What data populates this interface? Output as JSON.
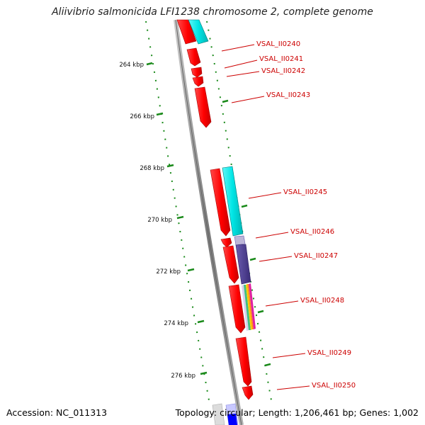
{
  "title": "Aliivibrio salmonicida LFI1238 chromosome 2, complete genome",
  "footer": {
    "accession": "Accession: NC_011313",
    "summary": "Topology: circular; Length: 1,206,461 bp; Genes: 1,002"
  },
  "scale_labels": [
    "264 kbp",
    "266 kbp",
    "268 kbp",
    "270 kbp",
    "272 kbp",
    "274 kbp",
    "276 kbp"
  ],
  "gene_labels": [
    "VSAL_II0240",
    "VSAL_II0241",
    "VSAL_II0242",
    "VSAL_II0243",
    "VSAL_II0245",
    "VSAL_II0246",
    "VSAL_II0247",
    "VSAL_II0248",
    "VSAL_II0249",
    "VSAL_II0250"
  ],
  "colors": {
    "gene_label": "#cc0000",
    "cds": "#ff0000",
    "cog_cyan": "#00e5e5",
    "cog_purple": "#4b3c8c",
    "backbone": "#808080",
    "scale_ticks": "#008000"
  }
}
